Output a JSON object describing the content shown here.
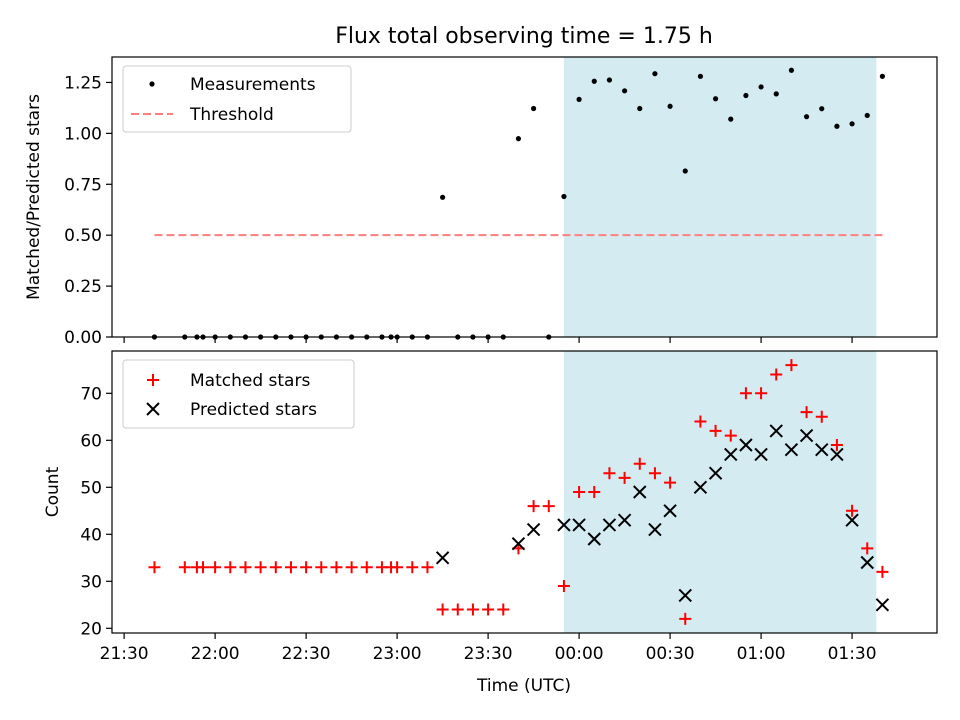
{
  "figure_title": "Flux total observing time = 1.75 h",
  "colors": {
    "measurement": "#000000",
    "threshold": "#ff7f7f",
    "matched": "#ff0000",
    "predicted": "#000000",
    "observing_span": "#add8e6"
  },
  "chart_data": [
    {
      "type": "scatter",
      "ylabel": "Matched/Predicted stars",
      "ylim": [
        0,
        1.375
      ],
      "yticks": [
        0.0,
        0.25,
        0.5,
        0.75,
        1.0,
        1.25
      ],
      "ytick_labels": [
        "0.00",
        "0.25",
        "0.50",
        "0.75",
        "1.00",
        "1.25"
      ],
      "xlim": [
        "21:26",
        "01:58"
      ],
      "x_axis_shared": true,
      "grid": false,
      "legend_position": "upper-left",
      "shaded_span": {
        "start": "23:55",
        "end": "01:38"
      },
      "series": [
        {
          "name": "Measurements",
          "marker": "dot",
          "points": [
            [
              "21:40",
              0.0
            ],
            [
              "21:50",
              0.0
            ],
            [
              "21:54",
              0.0
            ],
            [
              "21:56",
              0.0
            ],
            [
              "22:00",
              0.0
            ],
            [
              "22:05",
              0.0
            ],
            [
              "22:10",
              0.0
            ],
            [
              "22:15",
              0.0
            ],
            [
              "22:20",
              0.0
            ],
            [
              "22:25",
              0.0
            ],
            [
              "22:30",
              0.0
            ],
            [
              "22:35",
              0.0
            ],
            [
              "22:40",
              0.0
            ],
            [
              "22:45",
              0.0
            ],
            [
              "22:50",
              0.0
            ],
            [
              "22:55",
              0.0
            ],
            [
              "22:58",
              0.0
            ],
            [
              "23:00",
              0.0
            ],
            [
              "23:05",
              0.0
            ],
            [
              "23:10",
              0.0
            ],
            [
              "23:15",
              0.686
            ],
            [
              "23:20",
              0.0
            ],
            [
              "23:25",
              0.0
            ],
            [
              "23:30",
              0.0
            ],
            [
              "23:35",
              0.0
            ],
            [
              "23:40",
              0.974
            ],
            [
              "23:45",
              1.122
            ],
            [
              "23:50",
              0.0
            ],
            [
              "23:55",
              0.69
            ],
            [
              "24:00",
              1.167
            ],
            [
              "24:05",
              1.256
            ],
            [
              "24:10",
              1.262
            ],
            [
              "24:15",
              1.209
            ],
            [
              "24:20",
              1.122
            ],
            [
              "24:25",
              1.293
            ],
            [
              "24:30",
              1.133
            ],
            [
              "24:35",
              0.815
            ],
            [
              "24:40",
              1.28
            ],
            [
              "24:45",
              1.17
            ],
            [
              "24:50",
              1.07
            ],
            [
              "24:55",
              1.186
            ],
            [
              "25:00",
              1.228
            ],
            [
              "25:05",
              1.194
            ],
            [
              "25:10",
              1.31
            ],
            [
              "25:15",
              1.082
            ],
            [
              "25:20",
              1.121
            ],
            [
              "25:25",
              1.035
            ],
            [
              "25:30",
              1.047
            ],
            [
              "25:35",
              1.088
            ],
            [
              "25:40",
              1.28
            ]
          ]
        },
        {
          "name": "Threshold",
          "style": "dashed",
          "points": [
            [
              "21:40",
              0.5
            ],
            [
              "25:40",
              0.5
            ]
          ]
        }
      ]
    },
    {
      "type": "scatter",
      "xlabel": "Time (UTC)",
      "ylabel": "Count",
      "ylim": [
        19,
        79
      ],
      "yticks": [
        20,
        30,
        40,
        50,
        60,
        70
      ],
      "xlim": [
        "21:26",
        "01:58"
      ],
      "xticks": [
        "21:30",
        "22:00",
        "22:30",
        "23:00",
        "23:30",
        "00:00",
        "00:30",
        "01:00",
        "01:30"
      ],
      "grid": false,
      "legend_position": "upper-left",
      "shaded_span": {
        "start": "23:55",
        "end": "01:38"
      },
      "series": [
        {
          "name": "Matched stars",
          "marker": "plus",
          "points": [
            [
              "21:40",
              33
            ],
            [
              "21:50",
              33
            ],
            [
              "21:54",
              33
            ],
            [
              "21:56",
              33
            ],
            [
              "22:00",
              33
            ],
            [
              "22:05",
              33
            ],
            [
              "22:10",
              33
            ],
            [
              "22:15",
              33
            ],
            [
              "22:20",
              33
            ],
            [
              "22:25",
              33
            ],
            [
              "22:30",
              33
            ],
            [
              "22:35",
              33
            ],
            [
              "22:40",
              33
            ],
            [
              "22:45",
              33
            ],
            [
              "22:50",
              33
            ],
            [
              "22:55",
              33
            ],
            [
              "22:58",
              33
            ],
            [
              "23:00",
              33
            ],
            [
              "23:05",
              33
            ],
            [
              "23:10",
              33
            ],
            [
              "23:15",
              24
            ],
            [
              "23:20",
              24
            ],
            [
              "23:25",
              24
            ],
            [
              "23:30",
              24
            ],
            [
              "23:35",
              24
            ],
            [
              "23:40",
              37
            ],
            [
              "23:45",
              46
            ],
            [
              "23:50",
              46
            ],
            [
              "23:55",
              29
            ],
            [
              "24:00",
              49
            ],
            [
              "24:05",
              49
            ],
            [
              "24:10",
              53
            ],
            [
              "24:15",
              52
            ],
            [
              "24:20",
              55
            ],
            [
              "24:25",
              53
            ],
            [
              "24:30",
              51
            ],
            [
              "24:35",
              22
            ],
            [
              "24:40",
              64
            ],
            [
              "24:45",
              62
            ],
            [
              "24:50",
              61
            ],
            [
              "24:55",
              70
            ],
            [
              "25:00",
              70
            ],
            [
              "25:05",
              74
            ],
            [
              "25:10",
              76
            ],
            [
              "25:15",
              66
            ],
            [
              "25:20",
              65
            ],
            [
              "25:25",
              59
            ],
            [
              "25:30",
              45
            ],
            [
              "25:35",
              37
            ],
            [
              "25:40",
              32
            ]
          ]
        },
        {
          "name": "Predicted stars",
          "marker": "x",
          "points": [
            [
              "23:15",
              35
            ],
            [
              "23:40",
              38
            ],
            [
              "23:45",
              41
            ],
            [
              "23:55",
              42
            ],
            [
              "24:00",
              42
            ],
            [
              "24:05",
              39
            ],
            [
              "24:10",
              42
            ],
            [
              "24:15",
              43
            ],
            [
              "24:20",
              49
            ],
            [
              "24:25",
              41
            ],
            [
              "24:30",
              45
            ],
            [
              "24:35",
              27
            ],
            [
              "24:40",
              50
            ],
            [
              "24:45",
              53
            ],
            [
              "24:50",
              57
            ],
            [
              "24:55",
              59
            ],
            [
              "25:00",
              57
            ],
            [
              "25:05",
              62
            ],
            [
              "25:10",
              58
            ],
            [
              "25:15",
              61
            ],
            [
              "25:20",
              58
            ],
            [
              "25:25",
              57
            ],
            [
              "25:30",
              43
            ],
            [
              "25:35",
              34
            ],
            [
              "25:40",
              25
            ]
          ]
        }
      ]
    }
  ]
}
